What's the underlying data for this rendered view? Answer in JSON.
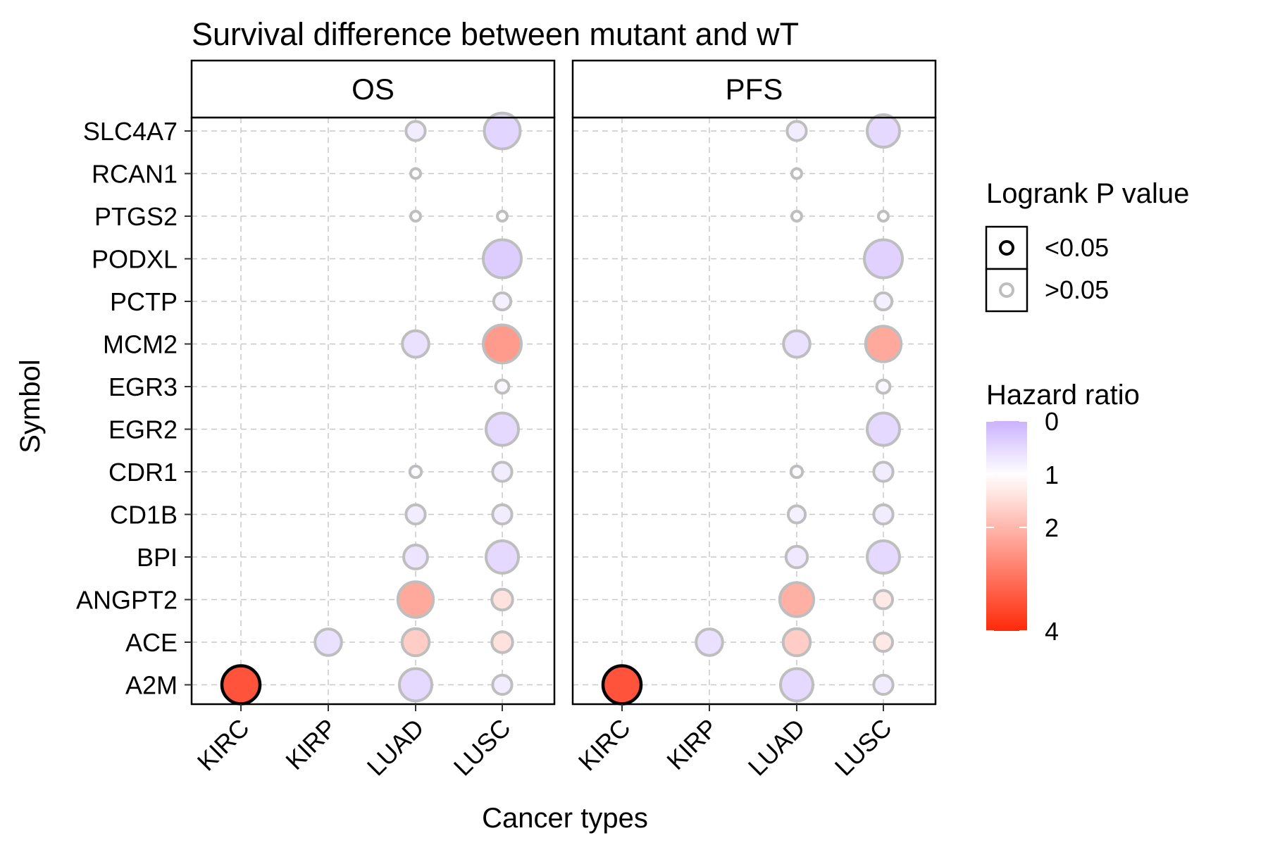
{
  "chart_data": {
    "type": "scatter",
    "title": "Survival difference between mutant and wT",
    "xlabel": "Cancer types",
    "ylabel": "Symbol",
    "facets": [
      "OS",
      "PFS"
    ],
    "categories": [
      "KIRC",
      "KIRP",
      "LUAD",
      "LUSC"
    ],
    "symbols": [
      "SLC4A7",
      "RCAN1",
      "PTGS2",
      "PODXL",
      "PCTP",
      "MCM2",
      "EGR3",
      "EGR2",
      "CDR1",
      "CD1B",
      "BPI",
      "ANGPT2",
      "ACE",
      "A2M"
    ],
    "grid": true,
    "legend_position": "right",
    "size_encoding": "abs(log2(hazard ratio))",
    "points": {
      "OS": [
        {
          "symbol": "SLC4A7",
          "cancer": "LUAD",
          "hr": 0.75,
          "p_sig": false
        },
        {
          "symbol": "SLC4A7",
          "cancer": "LUSC",
          "hr": 0.45,
          "p_sig": false
        },
        {
          "symbol": "RCAN1",
          "cancer": "LUAD",
          "hr": 1.0,
          "p_sig": false
        },
        {
          "symbol": "PTGS2",
          "cancer": "LUAD",
          "hr": 1.0,
          "p_sig": false
        },
        {
          "symbol": "PTGS2",
          "cancer": "LUSC",
          "hr": 1.0,
          "p_sig": false
        },
        {
          "symbol": "PODXL",
          "cancer": "LUSC",
          "hr": 0.35,
          "p_sig": false
        },
        {
          "symbol": "PCTP",
          "cancer": "LUSC",
          "hr": 0.8,
          "p_sig": false
        },
        {
          "symbol": "MCM2",
          "cancer": "LUAD",
          "hr": 0.6,
          "p_sig": false
        },
        {
          "symbol": "MCM2",
          "cancer": "LUSC",
          "hr": 2.4,
          "p_sig": false
        },
        {
          "symbol": "EGR3",
          "cancer": "LUSC",
          "hr": 0.9,
          "p_sig": false
        },
        {
          "symbol": "EGR2",
          "cancer": "LUSC",
          "hr": 0.5,
          "p_sig": false
        },
        {
          "symbol": "CDR1",
          "cancer": "LUAD",
          "hr": 0.95,
          "p_sig": false
        },
        {
          "symbol": "CDR1",
          "cancer": "LUSC",
          "hr": 0.75,
          "p_sig": false
        },
        {
          "symbol": "CD1B",
          "cancer": "LUAD",
          "hr": 0.75,
          "p_sig": false
        },
        {
          "symbol": "CD1B",
          "cancer": "LUSC",
          "hr": 0.75,
          "p_sig": false
        },
        {
          "symbol": "BPI",
          "cancer": "LUAD",
          "hr": 0.65,
          "p_sig": false
        },
        {
          "symbol": "BPI",
          "cancer": "LUSC",
          "hr": 0.5,
          "p_sig": false
        },
        {
          "symbol": "ANGPT2",
          "cancer": "LUAD",
          "hr": 2.2,
          "p_sig": false
        },
        {
          "symbol": "ANGPT2",
          "cancer": "LUSC",
          "hr": 1.4,
          "p_sig": false
        },
        {
          "symbol": "ACE",
          "cancer": "KIRP",
          "hr": 0.6,
          "p_sig": false
        },
        {
          "symbol": "ACE",
          "cancer": "LUAD",
          "hr": 1.7,
          "p_sig": false
        },
        {
          "symbol": "ACE",
          "cancer": "LUSC",
          "hr": 1.4,
          "p_sig": false
        },
        {
          "symbol": "A2M",
          "cancer": "KIRC",
          "hr": 3.4,
          "p_sig": true
        },
        {
          "symbol": "A2M",
          "cancer": "LUAD",
          "hr": 0.5,
          "p_sig": false
        },
        {
          "symbol": "A2M",
          "cancer": "LUSC",
          "hr": 0.75,
          "p_sig": false
        }
      ],
      "PFS": [
        {
          "symbol": "SLC4A7",
          "cancer": "LUAD",
          "hr": 0.75,
          "p_sig": false
        },
        {
          "symbol": "SLC4A7",
          "cancer": "LUSC",
          "hr": 0.5,
          "p_sig": false
        },
        {
          "symbol": "RCAN1",
          "cancer": "LUAD",
          "hr": 1.0,
          "p_sig": false
        },
        {
          "symbol": "PTGS2",
          "cancer": "LUAD",
          "hr": 1.0,
          "p_sig": false
        },
        {
          "symbol": "PTGS2",
          "cancer": "LUSC",
          "hr": 1.0,
          "p_sig": false
        },
        {
          "symbol": "PODXL",
          "cancer": "LUSC",
          "hr": 0.4,
          "p_sig": false
        },
        {
          "symbol": "PCTP",
          "cancer": "LUSC",
          "hr": 0.8,
          "p_sig": false
        },
        {
          "symbol": "MCM2",
          "cancer": "LUAD",
          "hr": 0.6,
          "p_sig": false
        },
        {
          "symbol": "MCM2",
          "cancer": "LUSC",
          "hr": 2.2,
          "p_sig": false
        },
        {
          "symbol": "EGR3",
          "cancer": "LUSC",
          "hr": 0.9,
          "p_sig": false
        },
        {
          "symbol": "EGR2",
          "cancer": "LUSC",
          "hr": 0.5,
          "p_sig": false
        },
        {
          "symbol": "CDR1",
          "cancer": "LUAD",
          "hr": 0.95,
          "p_sig": false
        },
        {
          "symbol": "CDR1",
          "cancer": "LUSC",
          "hr": 0.75,
          "p_sig": false
        },
        {
          "symbol": "CD1B",
          "cancer": "LUAD",
          "hr": 0.8,
          "p_sig": false
        },
        {
          "symbol": "CD1B",
          "cancer": "LUSC",
          "hr": 0.75,
          "p_sig": false
        },
        {
          "symbol": "BPI",
          "cancer": "LUAD",
          "hr": 0.7,
          "p_sig": false
        },
        {
          "symbol": "BPI",
          "cancer": "LUSC",
          "hr": 0.5,
          "p_sig": false
        },
        {
          "symbol": "ANGPT2",
          "cancer": "LUAD",
          "hr": 2.1,
          "p_sig": false
        },
        {
          "symbol": "ANGPT2",
          "cancer": "LUSC",
          "hr": 1.3,
          "p_sig": false
        },
        {
          "symbol": "ACE",
          "cancer": "KIRP",
          "hr": 0.6,
          "p_sig": false
        },
        {
          "symbol": "ACE",
          "cancer": "LUAD",
          "hr": 1.7,
          "p_sig": false
        },
        {
          "symbol": "ACE",
          "cancer": "LUSC",
          "hr": 1.3,
          "p_sig": false
        },
        {
          "symbol": "A2M",
          "cancer": "KIRC",
          "hr": 3.4,
          "p_sig": true
        },
        {
          "symbol": "A2M",
          "cancer": "LUAD",
          "hr": 0.5,
          "p_sig": false
        },
        {
          "symbol": "A2M",
          "cancer": "LUSC",
          "hr": 0.75,
          "p_sig": false
        }
      ]
    },
    "legend_p": {
      "title": "Logrank P value",
      "items": [
        {
          "label": "<0.05",
          "sig": true
        },
        {
          "label": ">0.05",
          "sig": false
        }
      ]
    },
    "legend_hr": {
      "title": "Hazard ratio",
      "ticks": [
        {
          "label": "0",
          "value": 0
        },
        {
          "label": "1",
          "value": 1
        },
        {
          "label": "2",
          "value": 2
        },
        {
          "label": "4",
          "value": 4
        }
      ]
    },
    "colors": {
      "low": "#cbb2ff",
      "mid": "#ffffff",
      "high": "#ff2a0a",
      "sig_stroke": "#000000",
      "nonsig_stroke": "#bebebe",
      "grid": "#c8c8c8"
    }
  }
}
